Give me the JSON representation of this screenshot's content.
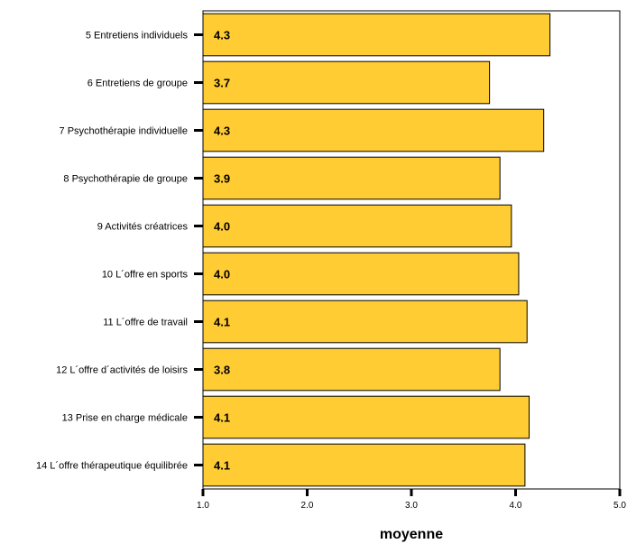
{
  "chart_data": {
    "type": "bar",
    "orientation": "horizontal",
    "categories": [
      "5 Entretiens individuels",
      "6 Entretiens de groupe",
      "7 Psychothérapie individuelle",
      "8 Psychothérapie de groupe",
      "9 Activités créatrices",
      "10 L´offre en sports",
      "11 L´offre de travail",
      "12 L´offre d´activités de loisirs",
      "13 Prise en charge médicale",
      "14 L´offre thérapeutique équilibrée"
    ],
    "values": [
      4.3,
      3.7,
      4.3,
      3.9,
      4.0,
      4.0,
      4.1,
      3.8,
      4.1,
      4.1
    ],
    "bar_ends": [
      4.33,
      3.75,
      4.27,
      3.85,
      3.96,
      4.03,
      4.11,
      3.85,
      4.13,
      4.09
    ],
    "data_labels": [
      "4.3",
      "3.7",
      "4.3",
      "3.9",
      "4.0",
      "4.0",
      "4.1",
      "3.8",
      "4.1",
      "4.1"
    ],
    "xlabel": "moyenne",
    "xlim": [
      1.0,
      5.0
    ],
    "x_ticks": [
      "1.0",
      "2.0",
      "3.0",
      "4.0",
      "5.0"
    ],
    "bar_color": "#FFCC33",
    "grid": false
  }
}
